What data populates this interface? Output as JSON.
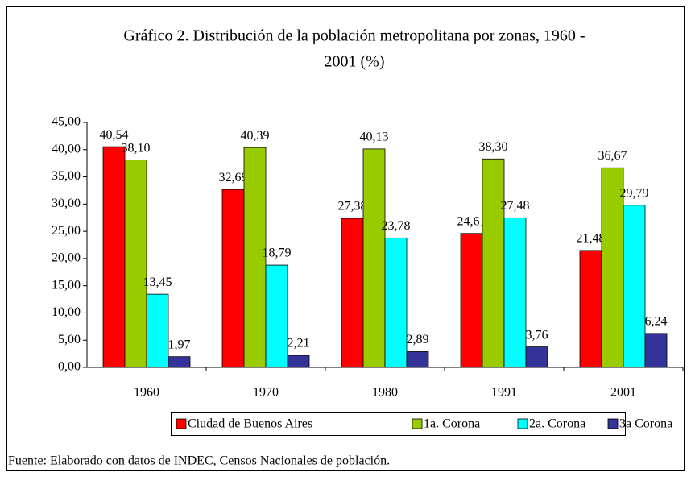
{
  "chart_data": {
    "type": "bar",
    "title": [
      "Gráfico 2. Distribución de la población metropolitana por zonas, 1960 -",
      "2001 (%)"
    ],
    "categories": [
      "1960",
      "1970",
      "1980",
      "1991",
      "2001"
    ],
    "series": [
      {
        "name": "Ciudad de Buenos Aires",
        "color": "#ff0000",
        "values": [
          40.54,
          32.69,
          27.38,
          24.61,
          21.48
        ],
        "value_labels": [
          "40,54",
          "32,69",
          "27,38",
          "24,61",
          "21,48"
        ]
      },
      {
        "name": "1a. Corona",
        "color": "#99cc00",
        "values": [
          38.1,
          40.39,
          40.13,
          38.3,
          36.67
        ],
        "value_labels": [
          "38,10",
          "40,39",
          "40,13",
          "38,30",
          "36,67"
        ]
      },
      {
        "name": "2a. Corona",
        "color": "#00ffff",
        "values": [
          13.45,
          18.79,
          23.78,
          27.48,
          29.79
        ],
        "value_labels": [
          "13,45",
          "18,79",
          "23,78",
          "27,48",
          "29,79"
        ]
      },
      {
        "name": "3a Corona",
        "color": "#333399",
        "values": [
          1.97,
          2.21,
          2.89,
          3.76,
          6.24
        ],
        "value_labels": [
          "1,97",
          "2,21",
          "2,89",
          "3,76",
          "6,24"
        ]
      }
    ],
    "ylim": [
      0,
      45
    ],
    "yticks": [
      {
        "value": 0,
        "label": "0,00"
      },
      {
        "value": 5,
        "label": "5,00"
      },
      {
        "value": 10,
        "label": "10,00"
      },
      {
        "value": 15,
        "label": "15,00"
      },
      {
        "value": 20,
        "label": "20,00"
      },
      {
        "value": 25,
        "label": "25,00"
      },
      {
        "value": 30,
        "label": "30,00"
      },
      {
        "value": 35,
        "label": "35,00"
      },
      {
        "value": 40,
        "label": "40,00"
      },
      {
        "value": 45,
        "label": "45,00"
      }
    ],
    "grid": false,
    "source": "Fuente: Elaborado con datos de INDEC, Censos Nacionales de población."
  }
}
